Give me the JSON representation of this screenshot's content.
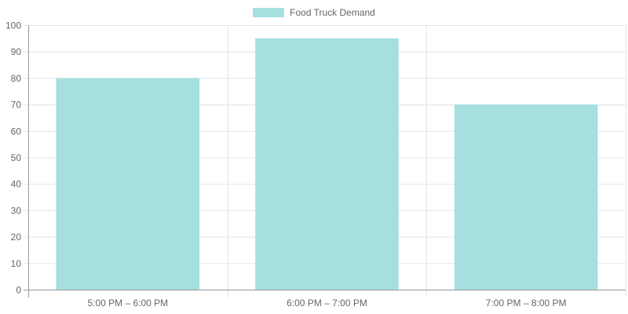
{
  "chart_data": {
    "type": "bar",
    "title": "",
    "categories": [
      "5:00 PM – 6:00 PM",
      "6:00 PM – 7:00 PM",
      "7:00 PM – 8:00 PM"
    ],
    "series": [
      {
        "name": "Food Truck Demand",
        "values": [
          80,
          95,
          70
        ],
        "color": "#a6dfe0"
      }
    ],
    "xlabel": "",
    "ylabel": "",
    "ylim": [
      0,
      100
    ],
    "yticks": [
      0,
      10,
      20,
      30,
      40,
      50,
      60,
      70,
      80,
      90,
      100
    ],
    "grid": true,
    "legend_position": "top"
  },
  "legend": {
    "label": "Food Truck Demand",
    "color": "#a6dfe0"
  },
  "colors": {
    "bar_fill": "#a6dfe0",
    "grid": "#e5e5e5",
    "axis": "#999999",
    "text": "#666666"
  }
}
